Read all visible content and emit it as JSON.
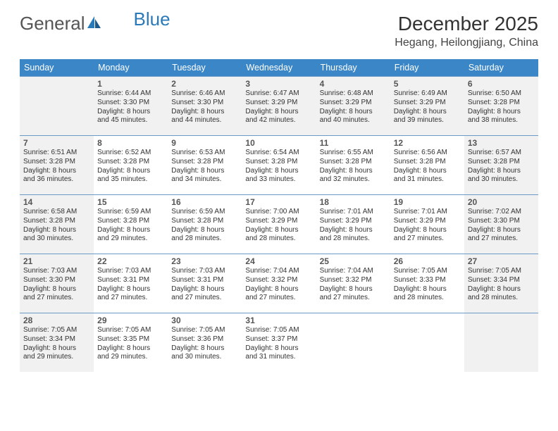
{
  "logo": {
    "text1": "General",
    "text2": "Blue"
  },
  "title": "December 2025",
  "location": "Hegang, Heilongjiang, China",
  "colors": {
    "header_bg": "#3b86c6",
    "header_text": "#ffffff",
    "cell_border": "#6a9bc7",
    "shaded_bg": "#f1f1f1",
    "logo_gray": "#555555",
    "logo_blue": "#2a7ab9",
    "text": "#333333"
  },
  "day_names": [
    "Sunday",
    "Monday",
    "Tuesday",
    "Wednesday",
    "Thursday",
    "Friday",
    "Saturday"
  ],
  "weeks": [
    [
      {
        "shaded": true,
        "day": "",
        "sunrise": "",
        "sunset": "",
        "daylight1": "",
        "daylight2": ""
      },
      {
        "shaded": true,
        "day": "1",
        "sunrise": "Sunrise: 6:44 AM",
        "sunset": "Sunset: 3:30 PM",
        "daylight1": "Daylight: 8 hours",
        "daylight2": "and 45 minutes."
      },
      {
        "shaded": true,
        "day": "2",
        "sunrise": "Sunrise: 6:46 AM",
        "sunset": "Sunset: 3:30 PM",
        "daylight1": "Daylight: 8 hours",
        "daylight2": "and 44 minutes."
      },
      {
        "shaded": true,
        "day": "3",
        "sunrise": "Sunrise: 6:47 AM",
        "sunset": "Sunset: 3:29 PM",
        "daylight1": "Daylight: 8 hours",
        "daylight2": "and 42 minutes."
      },
      {
        "shaded": true,
        "day": "4",
        "sunrise": "Sunrise: 6:48 AM",
        "sunset": "Sunset: 3:29 PM",
        "daylight1": "Daylight: 8 hours",
        "daylight2": "and 40 minutes."
      },
      {
        "shaded": true,
        "day": "5",
        "sunrise": "Sunrise: 6:49 AM",
        "sunset": "Sunset: 3:29 PM",
        "daylight1": "Daylight: 8 hours",
        "daylight2": "and 39 minutes."
      },
      {
        "shaded": true,
        "day": "6",
        "sunrise": "Sunrise: 6:50 AM",
        "sunset": "Sunset: 3:28 PM",
        "daylight1": "Daylight: 8 hours",
        "daylight2": "and 38 minutes."
      }
    ],
    [
      {
        "shaded": true,
        "day": "7",
        "sunrise": "Sunrise: 6:51 AM",
        "sunset": "Sunset: 3:28 PM",
        "daylight1": "Daylight: 8 hours",
        "daylight2": "and 36 minutes."
      },
      {
        "shaded": false,
        "day": "8",
        "sunrise": "Sunrise: 6:52 AM",
        "sunset": "Sunset: 3:28 PM",
        "daylight1": "Daylight: 8 hours",
        "daylight2": "and 35 minutes."
      },
      {
        "shaded": false,
        "day": "9",
        "sunrise": "Sunrise: 6:53 AM",
        "sunset": "Sunset: 3:28 PM",
        "daylight1": "Daylight: 8 hours",
        "daylight2": "and 34 minutes."
      },
      {
        "shaded": false,
        "day": "10",
        "sunrise": "Sunrise: 6:54 AM",
        "sunset": "Sunset: 3:28 PM",
        "daylight1": "Daylight: 8 hours",
        "daylight2": "and 33 minutes."
      },
      {
        "shaded": false,
        "day": "11",
        "sunrise": "Sunrise: 6:55 AM",
        "sunset": "Sunset: 3:28 PM",
        "daylight1": "Daylight: 8 hours",
        "daylight2": "and 32 minutes."
      },
      {
        "shaded": false,
        "day": "12",
        "sunrise": "Sunrise: 6:56 AM",
        "sunset": "Sunset: 3:28 PM",
        "daylight1": "Daylight: 8 hours",
        "daylight2": "and 31 minutes."
      },
      {
        "shaded": true,
        "day": "13",
        "sunrise": "Sunrise: 6:57 AM",
        "sunset": "Sunset: 3:28 PM",
        "daylight1": "Daylight: 8 hours",
        "daylight2": "and 30 minutes."
      }
    ],
    [
      {
        "shaded": true,
        "day": "14",
        "sunrise": "Sunrise: 6:58 AM",
        "sunset": "Sunset: 3:28 PM",
        "daylight1": "Daylight: 8 hours",
        "daylight2": "and 30 minutes."
      },
      {
        "shaded": false,
        "day": "15",
        "sunrise": "Sunrise: 6:59 AM",
        "sunset": "Sunset: 3:28 PM",
        "daylight1": "Daylight: 8 hours",
        "daylight2": "and 29 minutes."
      },
      {
        "shaded": false,
        "day": "16",
        "sunrise": "Sunrise: 6:59 AM",
        "sunset": "Sunset: 3:28 PM",
        "daylight1": "Daylight: 8 hours",
        "daylight2": "and 28 minutes."
      },
      {
        "shaded": false,
        "day": "17",
        "sunrise": "Sunrise: 7:00 AM",
        "sunset": "Sunset: 3:29 PM",
        "daylight1": "Daylight: 8 hours",
        "daylight2": "and 28 minutes."
      },
      {
        "shaded": false,
        "day": "18",
        "sunrise": "Sunrise: 7:01 AM",
        "sunset": "Sunset: 3:29 PM",
        "daylight1": "Daylight: 8 hours",
        "daylight2": "and 28 minutes."
      },
      {
        "shaded": false,
        "day": "19",
        "sunrise": "Sunrise: 7:01 AM",
        "sunset": "Sunset: 3:29 PM",
        "daylight1": "Daylight: 8 hours",
        "daylight2": "and 27 minutes."
      },
      {
        "shaded": true,
        "day": "20",
        "sunrise": "Sunrise: 7:02 AM",
        "sunset": "Sunset: 3:30 PM",
        "daylight1": "Daylight: 8 hours",
        "daylight2": "and 27 minutes."
      }
    ],
    [
      {
        "shaded": true,
        "day": "21",
        "sunrise": "Sunrise: 7:03 AM",
        "sunset": "Sunset: 3:30 PM",
        "daylight1": "Daylight: 8 hours",
        "daylight2": "and 27 minutes."
      },
      {
        "shaded": false,
        "day": "22",
        "sunrise": "Sunrise: 7:03 AM",
        "sunset": "Sunset: 3:31 PM",
        "daylight1": "Daylight: 8 hours",
        "daylight2": "and 27 minutes."
      },
      {
        "shaded": false,
        "day": "23",
        "sunrise": "Sunrise: 7:03 AM",
        "sunset": "Sunset: 3:31 PM",
        "daylight1": "Daylight: 8 hours",
        "daylight2": "and 27 minutes."
      },
      {
        "shaded": false,
        "day": "24",
        "sunrise": "Sunrise: 7:04 AM",
        "sunset": "Sunset: 3:32 PM",
        "daylight1": "Daylight: 8 hours",
        "daylight2": "and 27 minutes."
      },
      {
        "shaded": false,
        "day": "25",
        "sunrise": "Sunrise: 7:04 AM",
        "sunset": "Sunset: 3:32 PM",
        "daylight1": "Daylight: 8 hours",
        "daylight2": "and 27 minutes."
      },
      {
        "shaded": false,
        "day": "26",
        "sunrise": "Sunrise: 7:05 AM",
        "sunset": "Sunset: 3:33 PM",
        "daylight1": "Daylight: 8 hours",
        "daylight2": "and 28 minutes."
      },
      {
        "shaded": true,
        "day": "27",
        "sunrise": "Sunrise: 7:05 AM",
        "sunset": "Sunset: 3:34 PM",
        "daylight1": "Daylight: 8 hours",
        "daylight2": "and 28 minutes."
      }
    ],
    [
      {
        "shaded": true,
        "day": "28",
        "sunrise": "Sunrise: 7:05 AM",
        "sunset": "Sunset: 3:34 PM",
        "daylight1": "Daylight: 8 hours",
        "daylight2": "and 29 minutes."
      },
      {
        "shaded": false,
        "day": "29",
        "sunrise": "Sunrise: 7:05 AM",
        "sunset": "Sunset: 3:35 PM",
        "daylight1": "Daylight: 8 hours",
        "daylight2": "and 29 minutes."
      },
      {
        "shaded": false,
        "day": "30",
        "sunrise": "Sunrise: 7:05 AM",
        "sunset": "Sunset: 3:36 PM",
        "daylight1": "Daylight: 8 hours",
        "daylight2": "and 30 minutes."
      },
      {
        "shaded": false,
        "day": "31",
        "sunrise": "Sunrise: 7:05 AM",
        "sunset": "Sunset: 3:37 PM",
        "daylight1": "Daylight: 8 hours",
        "daylight2": "and 31 minutes."
      },
      {
        "shaded": false,
        "day": "",
        "sunrise": "",
        "sunset": "",
        "daylight1": "",
        "daylight2": ""
      },
      {
        "shaded": false,
        "day": "",
        "sunrise": "",
        "sunset": "",
        "daylight1": "",
        "daylight2": ""
      },
      {
        "shaded": true,
        "day": "",
        "sunrise": "",
        "sunset": "",
        "daylight1": "",
        "daylight2": ""
      }
    ]
  ]
}
